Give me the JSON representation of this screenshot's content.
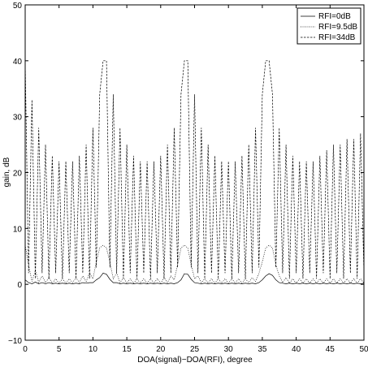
{
  "chart_data": {
    "type": "line",
    "title": "",
    "xlabel": "DOA(signal)−DOA(RFI), degree",
    "ylabel": "gain, dB",
    "xlim": [
      0,
      50
    ],
    "ylim": [
      -10,
      50
    ],
    "xticks": [
      "0",
      "5",
      "10",
      "15",
      "20",
      "25",
      "30",
      "35",
      "40",
      "45",
      "50"
    ],
    "yticks": [
      "50",
      "40",
      "30",
      "20",
      "10",
      "0",
      "−10"
    ],
    "grid": false,
    "legend_position": "top-right",
    "series": [
      {
        "name": "RFI=0dB",
        "style": "solid",
        "color": "#000000",
        "x": [
          0,
          0.5,
          1,
          1.5,
          2,
          2.5,
          3,
          3.5,
          4,
          4.5,
          5,
          5.5,
          6,
          6.5,
          7,
          7.5,
          8,
          8.5,
          9,
          9.5,
          10,
          10.5,
          11,
          11.5,
          12,
          12.5,
          13,
          13.5,
          14,
          14.5,
          15,
          15.5,
          16,
          16.5,
          17,
          17.5,
          18,
          18.5,
          19,
          19.5,
          20,
          20.5,
          21,
          21.5,
          22,
          22.5,
          23,
          23.5,
          24,
          24.5,
          25,
          25.5,
          26,
          26.5,
          27,
          27.5,
          28,
          28.5,
          29,
          29.5,
          30,
          30.5,
          31,
          31.5,
          32,
          32.5,
          33,
          33.5,
          34,
          34.5,
          35,
          35.5,
          36,
          36.5,
          37,
          37.5,
          38,
          38.5,
          39,
          39.5,
          40,
          40.5,
          41,
          41.5,
          42,
          42.5,
          43,
          43.5,
          44,
          44.5,
          45,
          45.5,
          46,
          46.5,
          47,
          47.5,
          48,
          48.5,
          49,
          49.5,
          50
        ],
        "values": [
          0.8,
          0.3,
          0.1,
          0.4,
          0.1,
          0.3,
          0.1,
          0.3,
          0.1,
          0.2,
          0.1,
          0.2,
          0.1,
          0.2,
          0.1,
          0.2,
          0.1,
          0.3,
          0.2,
          0.3,
          0.3,
          0.8,
          1.2,
          2.0,
          1.8,
          0.9,
          0.3,
          0.3,
          0.1,
          0.2,
          0.1,
          0.2,
          0.1,
          0.2,
          0.1,
          0.2,
          0.1,
          0.2,
          0.1,
          0.2,
          0.1,
          0.2,
          0.1,
          0.2,
          0.1,
          0.3,
          0.8,
          1.9,
          1.8,
          0.9,
          0.3,
          0.2,
          0.1,
          0.2,
          0.1,
          0.2,
          0.1,
          0.2,
          0.1,
          0.2,
          0.1,
          0.2,
          0.1,
          0.2,
          0.1,
          0.2,
          0.1,
          0.2,
          0.1,
          0.3,
          0.8,
          1.5,
          1.9,
          1.6,
          0.8,
          0.3,
          0.2,
          0.1,
          0.2,
          0.1,
          0.2,
          0.1,
          0.2,
          0.1,
          0.2,
          0.1,
          0.2,
          0.1,
          0.2,
          0.1,
          0.2,
          0.1,
          0.2,
          0.1,
          0.2,
          0.1,
          0.2,
          0.1,
          0.2,
          0.1,
          0.2
        ]
      },
      {
        "name": "RFI=9.5dB",
        "style": "dotted",
        "color": "#000000",
        "x": [
          0,
          0.5,
          1,
          1.5,
          2,
          2.5,
          3,
          3.5,
          4,
          4.5,
          5,
          5.5,
          6,
          6.5,
          7,
          7.5,
          8,
          8.5,
          9,
          9.5,
          10,
          10.5,
          11,
          11.5,
          12,
          12.5,
          13,
          13.5,
          14,
          14.5,
          15,
          15.5,
          16,
          16.5,
          17,
          17.5,
          18,
          18.5,
          19,
          19.5,
          20,
          20.5,
          21,
          21.5,
          22,
          22.5,
          23,
          23.5,
          24,
          24.5,
          25,
          25.5,
          26,
          26.5,
          27,
          27.5,
          28,
          28.5,
          29,
          29.5,
          30,
          30.5,
          31,
          31.5,
          32,
          32.5,
          33,
          33.5,
          34,
          34.5,
          35,
          35.5,
          36,
          36.5,
          37,
          37.5,
          38,
          38.5,
          39,
          39.5,
          40,
          40.5,
          41,
          41.5,
          42,
          42.5,
          43,
          43.5,
          44,
          44.5,
          45,
          45.5,
          46,
          46.5,
          47,
          47.5,
          48,
          48.5,
          49,
          49.5,
          50
        ],
        "values": [
          7.0,
          3.5,
          0.5,
          2.5,
          0.3,
          1.5,
          0.3,
          1.2,
          0.2,
          1.0,
          0.2,
          1.0,
          0.2,
          1.0,
          0.3,
          1.2,
          0.3,
          1.5,
          0.5,
          2.0,
          1.0,
          4.0,
          6.5,
          7.0,
          6.5,
          4.0,
          1.0,
          2.0,
          0.3,
          1.2,
          0.2,
          1.0,
          0.2,
          1.0,
          0.2,
          1.0,
          0.2,
          1.0,
          0.2,
          1.0,
          0.2,
          1.2,
          0.3,
          1.5,
          0.8,
          3.5,
          6.5,
          7.0,
          6.5,
          3.5,
          1.0,
          1.5,
          0.3,
          1.0,
          0.2,
          1.0,
          0.2,
          1.0,
          0.2,
          1.0,
          0.2,
          1.0,
          0.2,
          1.0,
          0.2,
          1.0,
          0.3,
          1.2,
          0.5,
          2.0,
          4.0,
          6.5,
          7.0,
          6.5,
          3.5,
          1.5,
          0.3,
          1.2,
          0.2,
          1.0,
          0.2,
          1.0,
          0.2,
          1.0,
          0.2,
          1.0,
          0.2,
          1.0,
          0.2,
          1.0,
          0.2,
          1.0,
          0.2,
          1.0,
          0.2,
          1.0,
          0.2,
          1.0,
          0.2,
          1.0,
          0.2
        ]
      },
      {
        "name": "RFI=34dB",
        "style": "dashed",
        "color": "#000000",
        "x": [
          0,
          0.5,
          1,
          1.5,
          2,
          2.5,
          3,
          3.5,
          4,
          4.5,
          5,
          5.5,
          6,
          6.5,
          7,
          7.5,
          8,
          8.5,
          9,
          9.5,
          10,
          10.5,
          11,
          11.5,
          12,
          12.5,
          13,
          13.5,
          14,
          14.5,
          15,
          15.5,
          16,
          16.5,
          17,
          17.5,
          18,
          18.5,
          19,
          19.5,
          20,
          20.5,
          21,
          21.5,
          22,
          22.5,
          23,
          23.5,
          24,
          24.5,
          25,
          25.5,
          26,
          26.5,
          27,
          27.5,
          28,
          28.5,
          29,
          29.5,
          30,
          30.5,
          31,
          31.5,
          32,
          32.5,
          33,
          33.5,
          34,
          34.5,
          35,
          35.5,
          36,
          36.5,
          37,
          37.5,
          38,
          38.5,
          39,
          39.5,
          40,
          40.5,
          41,
          41.5,
          42,
          42.5,
          43,
          43.5,
          44,
          44.5,
          45,
          45.5,
          46,
          46.5,
          47,
          47.5,
          48,
          48.5,
          49,
          49.5,
          50
        ],
        "values": [
          40.0,
          2.0,
          33.0,
          1.0,
          28.0,
          2.0,
          25.0,
          1.0,
          23.0,
          2.0,
          22.0,
          1.0,
          22.0,
          2.0,
          22.0,
          1.0,
          23.0,
          2.0,
          25.0,
          1.0,
          28.0,
          3.0,
          34.0,
          40.0,
          40.0,
          3.0,
          34.0,
          2.0,
          28.0,
          1.0,
          25.0,
          2.0,
          23.0,
          1.0,
          22.0,
          2.0,
          22.0,
          1.0,
          22.0,
          2.0,
          23.0,
          1.0,
          25.0,
          2.0,
          28.0,
          3.0,
          34.0,
          40.0,
          40.0,
          3.0,
          34.0,
          2.0,
          28.0,
          1.0,
          25.0,
          2.0,
          23.0,
          1.0,
          22.0,
          2.0,
          22.0,
          1.0,
          22.0,
          2.0,
          23.0,
          1.0,
          25.0,
          2.0,
          28.0,
          3.0,
          34.0,
          40.0,
          40.0,
          34.0,
          3.0,
          28.0,
          2.0,
          25.0,
          1.0,
          23.0,
          2.0,
          22.0,
          1.0,
          22.0,
          2.0,
          22.0,
          1.0,
          23.0,
          2.0,
          24.0,
          1.0,
          25.0,
          2.0,
          25.0,
          1.0,
          26.0,
          2.0,
          26.0,
          1.0,
          27.0,
          2.0
        ]
      }
    ]
  }
}
